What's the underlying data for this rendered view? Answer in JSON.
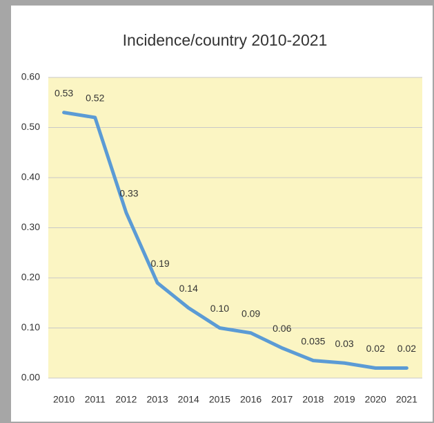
{
  "chart_data": {
    "type": "line",
    "title": "Incidence/country 2010-2021",
    "categories": [
      "2010",
      "2011",
      "2012",
      "2013",
      "2014",
      "2015",
      "2016",
      "2017",
      "2018",
      "2019",
      "2020",
      "2021"
    ],
    "values": [
      0.53,
      0.52,
      0.33,
      0.19,
      0.14,
      0.1,
      0.09,
      0.06,
      0.035,
      0.03,
      0.02,
      0.02
    ],
    "value_labels": [
      "0.53",
      "0.52",
      "0.33",
      "0.19",
      "0.14",
      "0.10",
      "0.09",
      "0.06",
      "0.035",
      "0.03",
      "0.02",
      "0.02"
    ],
    "color": "#5b9bd5",
    "ylim": [
      0,
      0.6
    ],
    "yticks": [
      {
        "value": 0,
        "label": "0.00"
      },
      {
        "value": 0.1,
        "label": "0.10"
      },
      {
        "value": 0.2,
        "label": "0.20"
      },
      {
        "value": 0.3,
        "label": "0.30"
      },
      {
        "value": 0.4,
        "label": "0.40"
      },
      {
        "value": 0.5,
        "label": "0.50"
      },
      {
        "value": 0.6,
        "label": "0.60"
      }
    ],
    "grid": true
  }
}
